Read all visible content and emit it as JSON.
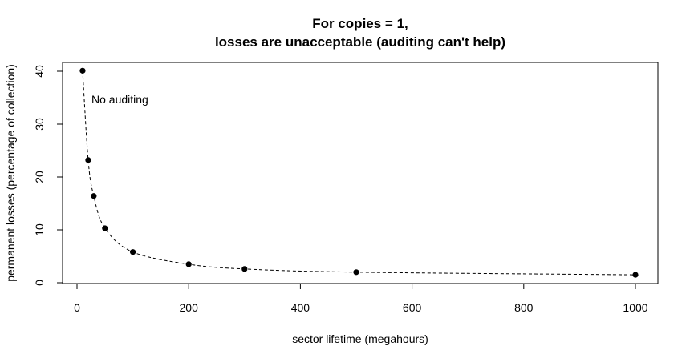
{
  "chart_data": {
    "type": "scatter",
    "title": [
      "For copies = 1,",
      "losses are unacceptable (auditing can't help)"
    ],
    "xlabel": "sector lifetime (megahours)",
    "ylabel": "permanent losses (percentage of collection)",
    "xlim": [
      0,
      1000
    ],
    "ylim": [
      0,
      40
    ],
    "xticks": [
      0,
      200,
      400,
      600,
      800,
      1000
    ],
    "yticks": [
      0,
      10,
      20,
      30,
      40
    ],
    "grid": false,
    "annotations": [
      {
        "text": "No auditing"
      }
    ],
    "series": [
      {
        "x": [
          10,
          20,
          30,
          50,
          100,
          200,
          300,
          500,
          1000
        ],
        "y": [
          40.1,
          23.2,
          16.4,
          10.3,
          5.8,
          3.5,
          2.6,
          2.0,
          1.5
        ],
        "line_style": "dashed",
        "marker": "filled-circle",
        "color": "#000000"
      }
    ]
  }
}
